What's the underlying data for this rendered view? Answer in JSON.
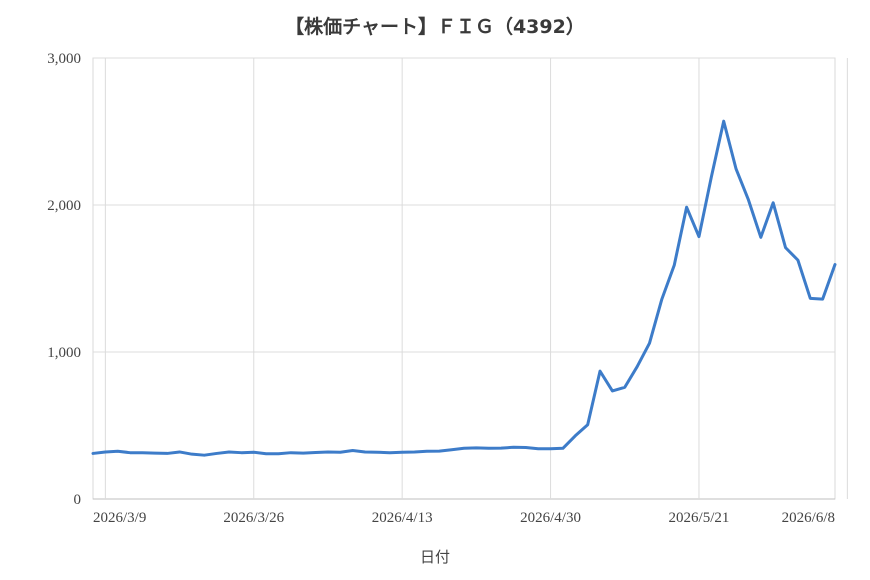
{
  "chart_data": {
    "type": "line",
    "title": "【株価チャート】ＦＩＧ（4392）",
    "xlabel": "日付",
    "ylabel": "",
    "ylim": [
      0,
      3000
    ],
    "yticks": [
      0,
      1000,
      2000,
      3000
    ],
    "ytick_labels": [
      "0",
      "1,000",
      "2,000",
      "3,000"
    ],
    "xtick_labels": [
      "2026/3/9",
      "2026/3/26",
      "2026/4/13",
      "2026/4/30",
      "2026/5/21",
      "2026/6/8"
    ],
    "xtick_indices": [
      1,
      13,
      25,
      37,
      49,
      61
    ],
    "grid": true,
    "line_color": "#3d7cc9",
    "series": [
      {
        "values": [
          310,
          320,
          325,
          315,
          315,
          312,
          310,
          320,
          305,
          298,
          310,
          320,
          315,
          318,
          308,
          308,
          315,
          312,
          316,
          320,
          318,
          330,
          320,
          318,
          315,
          318,
          320,
          325,
          326,
          335,
          345,
          348,
          345,
          346,
          352,
          350,
          342,
          342,
          345,
          430,
          505,
          870,
          735,
          760,
          900,
          1060,
          1360,
          1590,
          1985,
          1785,
          2190,
          2570,
          2245,
          2035,
          1780,
          2015,
          1710,
          1625,
          1365,
          1360,
          1595
        ]
      }
    ]
  }
}
